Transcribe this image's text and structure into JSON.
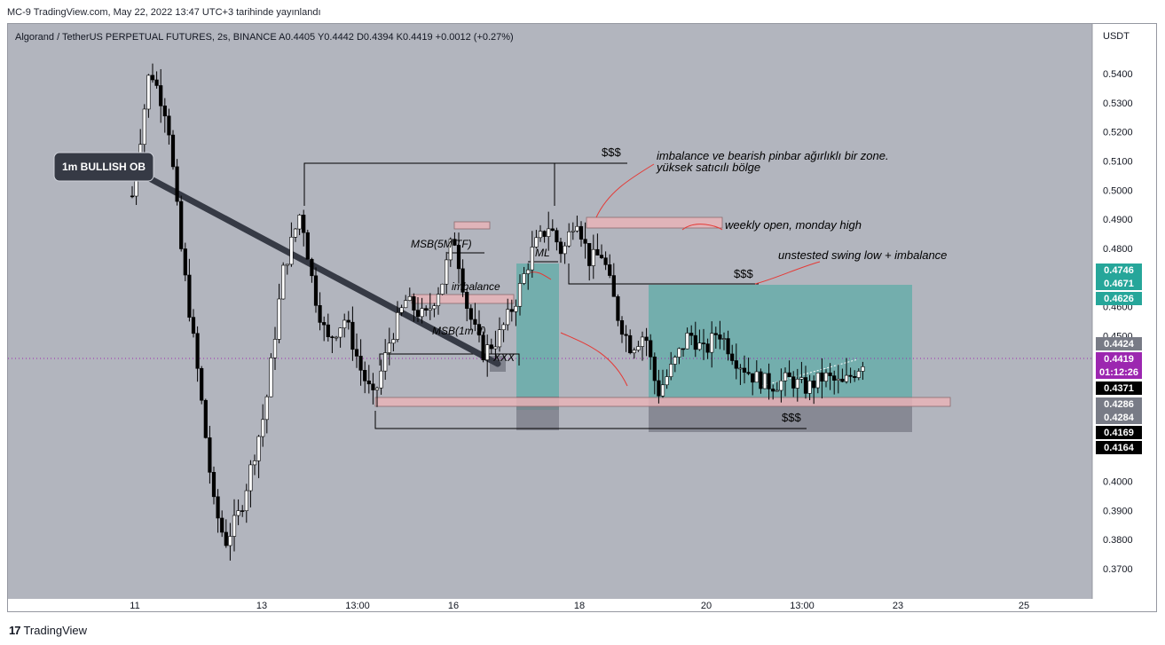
{
  "header": {
    "banner": "MC-9 TradingView.com, May 22, 2022 13:47 UTC+3 tarihinde yayınlandı",
    "symbol_line": "Algorand / TetherUS PERPETUAL FUTURES, 2s, BINANCE  A0.4405  Y0.4442  D0.4394  K0.4419  +0.0012 (+0.27%)"
  },
  "footer": {
    "brand": "TradingView",
    "logo": "tv-logo"
  },
  "colors": {
    "background": "#b2b5be",
    "up": "#ffffff",
    "down": "#000000",
    "green_box": "#26a69a",
    "pink_zone": "#e8b4b8",
    "label_dark": "#363a45"
  },
  "chart_data": {
    "type": "candlestick",
    "currency": "USDT",
    "ylim": [
      0.362,
      0.555
    ],
    "y_ticks": [
      "0.5400",
      "0.5300",
      "0.5200",
      "0.5100",
      "0.5000",
      "0.4900",
      "0.4800",
      "0.4700",
      "0.4600",
      "0.4500",
      "0.4000",
      "0.3900",
      "0.3800",
      "0.3700"
    ],
    "x_ticks": [
      "11",
      "13",
      "13:00",
      "16",
      "18",
      "20",
      "13:00",
      "23",
      "25"
    ],
    "price_labels": [
      {
        "text": "0.4746",
        "kind": "green"
      },
      {
        "text": "0.4671",
        "kind": "green"
      },
      {
        "text": "0.4626",
        "kind": "green"
      },
      {
        "text": "0.4424",
        "kind": "gray"
      },
      {
        "text": "0.4419",
        "kind": "current"
      },
      {
        "text": "01:12:26",
        "kind": "current"
      },
      {
        "text": "0.4371",
        "kind": "black"
      },
      {
        "text": "0.4286",
        "kind": "gray"
      },
      {
        "text": "0.4284",
        "kind": "gray"
      },
      {
        "text": "0.4169",
        "kind": "black"
      },
      {
        "text": "0.4164",
        "kind": "black"
      }
    ],
    "annotations": [
      {
        "text": "1m BULLISH OB",
        "kind": "callout"
      },
      {
        "text": "$$$"
      },
      {
        "text": "imbalance ve bearish pinbar ağırlıklı bir zone."
      },
      {
        "text": "yüksek satıcılı bölge"
      },
      {
        "text": "weekly open, monday high"
      },
      {
        "text": "unstested swing low + imbalance"
      },
      {
        "text": "$$$"
      },
      {
        "text": "MSB(5M TF)"
      },
      {
        "text": "imbalance"
      },
      {
        "text": "ML"
      },
      {
        "text": "MSB(1m tf)"
      },
      {
        "text": "XXX"
      },
      {
        "text": "$$$"
      }
    ]
  }
}
